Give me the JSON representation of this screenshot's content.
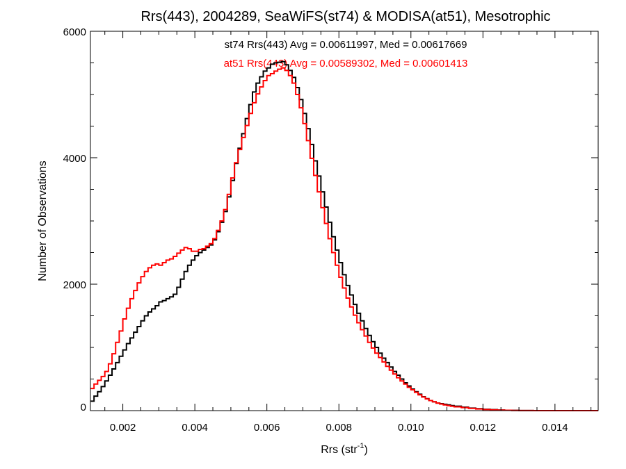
{
  "chart_data": {
    "type": "line",
    "title": "Rrs(443), 2004289, SeaWiFS(st74) & MODISA(at51), Mesotrophic",
    "xlabel_main": "Rrs (str",
    "xlabel_sup": "-1",
    "xlabel_close": ")",
    "ylabel": "Number of Observations",
    "xlim": [
      0.0011,
      0.0152
    ],
    "ylim": [
      0,
      6000
    ],
    "xticks": [
      "0.002",
      "0.004",
      "0.006",
      "0.008",
      "0.010",
      "0.012",
      "0.014"
    ],
    "yticks": [
      "0",
      "2000",
      "4000",
      "6000"
    ],
    "step": true,
    "series": [
      {
        "name": "st74",
        "color": "#000000",
        "annotation": "st74 Rrs(443) Avg = 0.00611997, Med = 0.00617669",
        "x": [
          0.0011,
          0.0012,
          0.0013,
          0.0014,
          0.0015,
          0.0016,
          0.0017,
          0.0018,
          0.0019,
          0.002,
          0.0021,
          0.0022,
          0.0023,
          0.0024,
          0.0025,
          0.0026,
          0.0027,
          0.0028,
          0.0029,
          0.003,
          0.0031,
          0.0032,
          0.0033,
          0.0034,
          0.0035,
          0.0036,
          0.0037,
          0.0038,
          0.0039,
          0.004,
          0.0041,
          0.0042,
          0.0043,
          0.0044,
          0.0045,
          0.0046,
          0.0047,
          0.0048,
          0.0049,
          0.005,
          0.0051,
          0.0052,
          0.0053,
          0.0054,
          0.0055,
          0.0056,
          0.0057,
          0.0058,
          0.0059,
          0.006,
          0.0061,
          0.0062,
          0.0063,
          0.0064,
          0.0065,
          0.0066,
          0.0067,
          0.0068,
          0.0069,
          0.007,
          0.0071,
          0.0072,
          0.0073,
          0.0074,
          0.0075,
          0.0076,
          0.0077,
          0.0078,
          0.0079,
          0.008,
          0.0081,
          0.0082,
          0.0083,
          0.0084,
          0.0085,
          0.0086,
          0.0087,
          0.0088,
          0.0089,
          0.009,
          0.0091,
          0.0092,
          0.0093,
          0.0094,
          0.0095,
          0.0096,
          0.0097,
          0.0098,
          0.0099,
          0.01,
          0.0101,
          0.0102,
          0.0103,
          0.0104,
          0.0105,
          0.0106,
          0.0107,
          0.0108,
          0.0109,
          0.011,
          0.0111,
          0.0112,
          0.0114,
          0.0116,
          0.0118,
          0.012,
          0.0122,
          0.0124,
          0.0126,
          0.0128,
          0.013,
          0.0132,
          0.0134,
          0.0136,
          0.0138,
          0.014,
          0.0142,
          0.0144,
          0.0146,
          0.0148,
          0.015,
          0.0152
        ],
        "y": [
          150,
          230,
          300,
          380,
          470,
          560,
          660,
          760,
          860,
          960,
          1060,
          1150,
          1240,
          1330,
          1420,
          1500,
          1560,
          1610,
          1660,
          1720,
          1740,
          1770,
          1800,
          1840,
          1950,
          2080,
          2200,
          2300,
          2380,
          2450,
          2500,
          2540,
          2580,
          2620,
          2700,
          2830,
          2980,
          3150,
          3380,
          3640,
          3910,
          4150,
          4380,
          4620,
          4840,
          5040,
          5180,
          5280,
          5370,
          5420,
          5480,
          5500,
          5510,
          5520,
          5470,
          5380,
          5270,
          5110,
          4920,
          4700,
          4460,
          4210,
          3950,
          3710,
          3460,
          3220,
          2980,
          2750,
          2540,
          2340,
          2150,
          1980,
          1830,
          1680,
          1540,
          1420,
          1300,
          1190,
          1090,
          1000,
          910,
          830,
          760,
          690,
          620,
          560,
          500,
          440,
          390,
          340,
          300,
          260,
          220,
          190,
          160,
          140,
          120,
          110,
          100,
          90,
          80,
          70,
          55,
          40,
          30,
          22,
          16,
          10,
          6,
          4,
          2,
          1,
          0,
          0,
          0,
          0,
          0,
          0,
          0,
          0,
          0,
          0
        ]
      },
      {
        "name": "at51",
        "color": "#ff0000",
        "annotation": "at51 Rrs(443) Avg = 0.00589302, Med = 0.00601413",
        "x": [
          0.0011,
          0.0012,
          0.0013,
          0.0014,
          0.0015,
          0.0016,
          0.0017,
          0.0018,
          0.0019,
          0.002,
          0.0021,
          0.0022,
          0.0023,
          0.0024,
          0.0025,
          0.0026,
          0.0027,
          0.0028,
          0.0029,
          0.003,
          0.0031,
          0.0032,
          0.0033,
          0.0034,
          0.0035,
          0.0036,
          0.0037,
          0.0038,
          0.0039,
          0.004,
          0.0041,
          0.0042,
          0.0043,
          0.0044,
          0.0045,
          0.0046,
          0.0047,
          0.0048,
          0.0049,
          0.005,
          0.0051,
          0.0052,
          0.0053,
          0.0054,
          0.0055,
          0.0056,
          0.0057,
          0.0058,
          0.0059,
          0.006,
          0.0061,
          0.0062,
          0.0063,
          0.0064,
          0.0065,
          0.0066,
          0.0067,
          0.0068,
          0.0069,
          0.007,
          0.0071,
          0.0072,
          0.0073,
          0.0074,
          0.0075,
          0.0076,
          0.0077,
          0.0078,
          0.0079,
          0.008,
          0.0081,
          0.0082,
          0.0083,
          0.0084,
          0.0085,
          0.0086,
          0.0087,
          0.0088,
          0.0089,
          0.009,
          0.0091,
          0.0092,
          0.0093,
          0.0094,
          0.0095,
          0.0096,
          0.0097,
          0.0098,
          0.0099,
          0.01,
          0.0101,
          0.0102,
          0.0103,
          0.0104,
          0.0105,
          0.0106,
          0.0107,
          0.0108,
          0.0109,
          0.011,
          0.0111,
          0.0112,
          0.0114,
          0.0116,
          0.0118,
          0.012,
          0.0122,
          0.0124,
          0.0126,
          0.0128,
          0.013,
          0.0132,
          0.0134,
          0.0136,
          0.0138,
          0.014,
          0.0142,
          0.0144,
          0.0146,
          0.0148,
          0.015,
          0.0152
        ],
        "y": [
          350,
          420,
          480,
          540,
          620,
          740,
          900,
          1080,
          1260,
          1450,
          1620,
          1770,
          1900,
          2020,
          2120,
          2200,
          2260,
          2300,
          2320,
          2300,
          2340,
          2380,
          2400,
          2440,
          2490,
          2540,
          2580,
          2560,
          2520,
          2520,
          2550,
          2560,
          2600,
          2640,
          2720,
          2850,
          3000,
          3180,
          3420,
          3680,
          3920,
          4130,
          4320,
          4510,
          4700,
          4870,
          5010,
          5120,
          5220,
          5300,
          5330,
          5370,
          5400,
          5420,
          5380,
          5300,
          5180,
          5000,
          4790,
          4540,
          4270,
          3990,
          3720,
          3460,
          3210,
          2960,
          2720,
          2500,
          2300,
          2110,
          1940,
          1780,
          1640,
          1510,
          1390,
          1280,
          1180,
          1080,
          990,
          910,
          840,
          770,
          700,
          640,
          580,
          520,
          470,
          420,
          370,
          330,
          290,
          250,
          215,
          185,
          160,
          140,
          120,
          105,
          90,
          80,
          70,
          60,
          48,
          36,
          26,
          18,
          12,
          8,
          5,
          3,
          2,
          1,
          0,
          0,
          0,
          0,
          0,
          0,
          0,
          0,
          0,
          0
        ]
      }
    ]
  }
}
